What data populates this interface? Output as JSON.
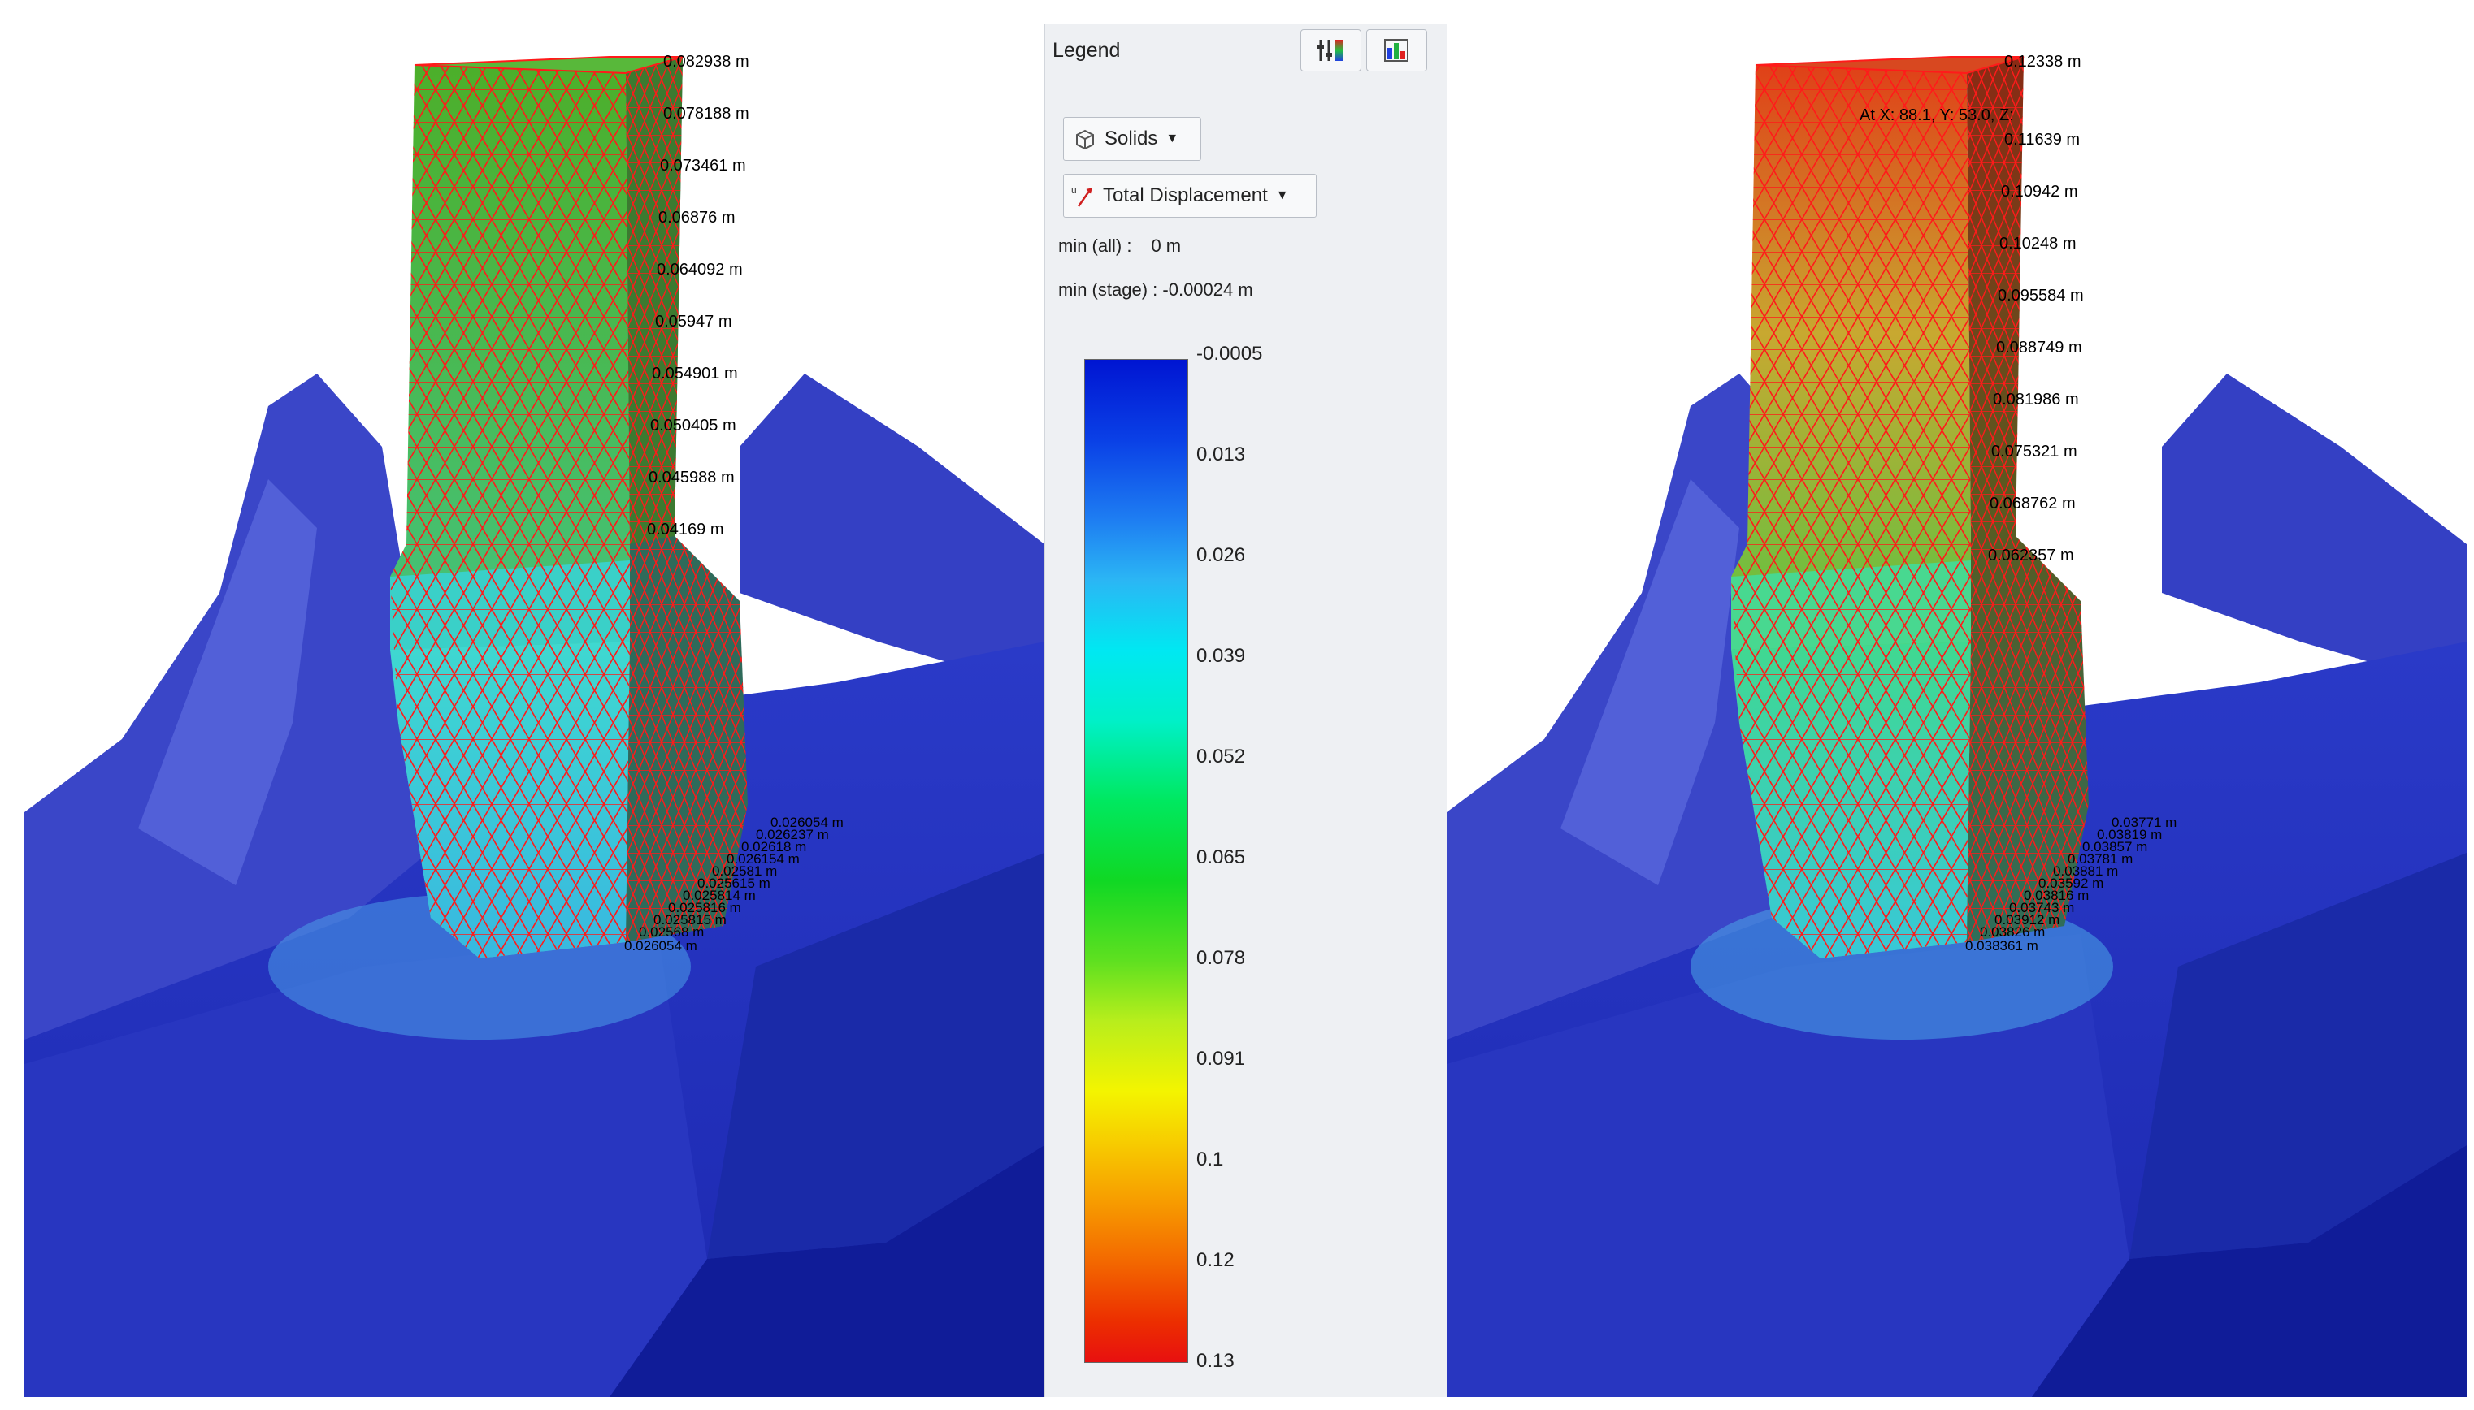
{
  "legend": {
    "title": "Legend",
    "solids_label": "Solids",
    "result_label": "Total Displacement",
    "min_all_label": "min (all) :",
    "min_all_value": "0 m",
    "min_stage_label": "min (stage) :",
    "min_stage_value": "-0.00024 m",
    "ticks": [
      "-0.0005",
      "0.013",
      "0.026",
      "0.039",
      "0.052",
      "0.065",
      "0.078",
      "0.091",
      "0.1",
      "0.12",
      "0.13"
    ],
    "colors": {
      "low": "#0015d2",
      "mid": "#00e860",
      "high": "#e81010"
    },
    "icons": [
      "legend-settings-icon",
      "legend-colormap-icon",
      "solids-cube-icon",
      "displacement-icon"
    ]
  },
  "left_view": {
    "probe_labels": [
      "0.082938 m",
      "0.078188 m",
      "0.073461 m",
      "0.06876 m",
      "0.064092 m",
      "0.05947 m",
      "0.054901 m",
      "0.050405 m",
      "0.045988 m",
      "0.04169 m"
    ],
    "base_labels": [
      "0.026054 m",
      "0.026237 m",
      "0.02618 m",
      "0.026154 m",
      "0.02581 m",
      "0.025615 m",
      "0.025814 m",
      "0.025816 m",
      "0.025815 m",
      "0.02568 m",
      "0.026054 m"
    ]
  },
  "right_view": {
    "cursor_readout": "At X: 88.1, Y: 53.0, Z:",
    "probe_labels": [
      "0.12338 m",
      "0.11639 m",
      "0.10942 m",
      "0.10248 m",
      "0.095584 m",
      "0.088749 m",
      "0.081986 m",
      "0.075321 m",
      "0.068762 m",
      "0.062357 m"
    ],
    "base_labels": [
      "0.03771 m",
      "0.03819 m",
      "0.03857 m",
      "0.03781 m",
      "0.03881 m",
      "0.03592 m",
      "0.03816 m",
      "0.03743 m",
      "0.03912 m",
      "0.03826 m",
      "0.038361 m"
    ]
  }
}
